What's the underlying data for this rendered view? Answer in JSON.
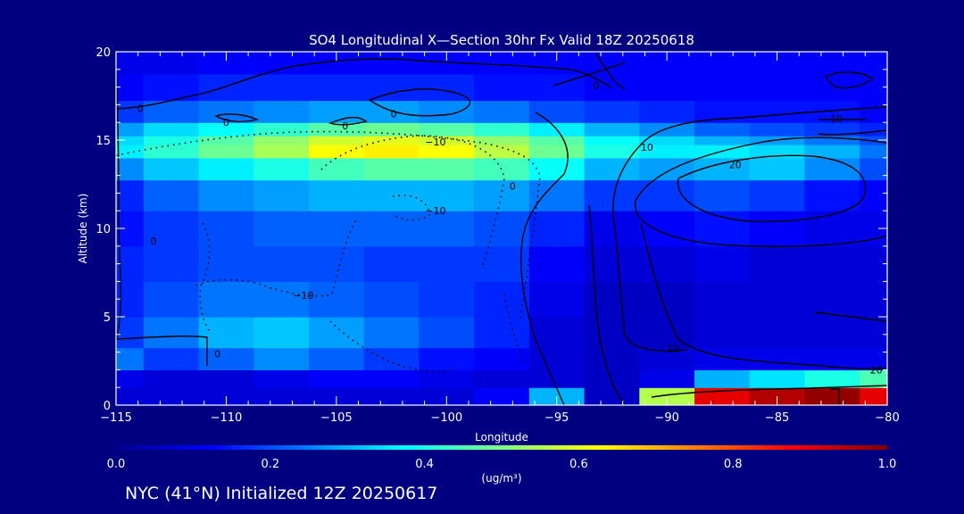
{
  "chart_data": {
    "type": "heatmap",
    "title": "SO4 Longitudinal X—Section 30hr  Fx Valid 18Z 20250618",
    "xlabel": "Longitude",
    "ylabel": "Altitude (km)",
    "xlim": [
      -115,
      -80
    ],
    "ylim": [
      0,
      20
    ],
    "x_ticks": [
      -115,
      -110,
      -105,
      -100,
      -95,
      -90,
      -85,
      -80
    ],
    "x_tick_labels": [
      "−115",
      "−110",
      "−105",
      "−100",
      "−95",
      "−90",
      "−85",
      "−80"
    ],
    "y_ticks": [
      0,
      5,
      10,
      15,
      20
    ],
    "y_tick_labels": [
      "0",
      "5",
      "10",
      "15",
      "20"
    ],
    "colorbar": {
      "min": 0.0,
      "max": 1.0,
      "ticks": [
        0.0,
        0.2,
        0.4,
        0.6,
        0.8,
        1.0
      ],
      "tick_labels": [
        "0.0",
        "0.2",
        "0.4",
        "0.6",
        "0.8",
        "1.0"
      ],
      "units": "(ug/m³)",
      "colormap": "jet"
    },
    "concentration_field": {
      "x": [
        -115,
        -112.5,
        -110,
        -107.5,
        -105,
        -102.5,
        -100,
        -97.5,
        -95,
        -92.5,
        -90,
        -87.5,
        -85,
        -82.5,
        -80
      ],
      "y": [
        0.5,
        1.5,
        2.5,
        4,
        6,
        8,
        10,
        12,
        13.5,
        14.5,
        15,
        15.5,
        16.5,
        18,
        19.5
      ],
      "z": [
        [
          0.08,
          0.08,
          0.08,
          0.08,
          0.08,
          0.08,
          0.08,
          0.12,
          0.3,
          0.06,
          0.55,
          0.9,
          0.95,
          0.98,
          0.9
        ],
        [
          0.1,
          0.08,
          0.08,
          0.1,
          0.12,
          0.12,
          0.1,
          0.08,
          0.08,
          0.06,
          0.1,
          0.3,
          0.35,
          0.4,
          0.45
        ],
        [
          0.24,
          0.18,
          0.22,
          0.26,
          0.22,
          0.18,
          0.14,
          0.12,
          0.08,
          0.06,
          0.08,
          0.1,
          0.1,
          0.1,
          0.1
        ],
        [
          0.18,
          0.24,
          0.3,
          0.32,
          0.28,
          0.24,
          0.2,
          0.16,
          0.08,
          0.06,
          0.06,
          0.08,
          0.08,
          0.08,
          0.08
        ],
        [
          0.16,
          0.2,
          0.24,
          0.24,
          0.22,
          0.2,
          0.18,
          0.16,
          0.1,
          0.06,
          0.06,
          0.08,
          0.08,
          0.08,
          0.08
        ],
        [
          0.16,
          0.18,
          0.2,
          0.2,
          0.2,
          0.18,
          0.18,
          0.18,
          0.12,
          0.08,
          0.08,
          0.1,
          0.08,
          0.08,
          0.08
        ],
        [
          0.14,
          0.18,
          0.2,
          0.22,
          0.22,
          0.22,
          0.22,
          0.2,
          0.16,
          0.1,
          0.12,
          0.14,
          0.12,
          0.1,
          0.1
        ],
        [
          0.16,
          0.22,
          0.26,
          0.28,
          0.3,
          0.3,
          0.3,
          0.28,
          0.24,
          0.18,
          0.18,
          0.2,
          0.18,
          0.14,
          0.12
        ],
        [
          0.26,
          0.32,
          0.36,
          0.4,
          0.44,
          0.46,
          0.46,
          0.44,
          0.38,
          0.3,
          0.28,
          0.3,
          0.32,
          0.26,
          0.2
        ],
        [
          0.36,
          0.42,
          0.48,
          0.54,
          0.62,
          0.64,
          0.62,
          0.56,
          0.48,
          0.4,
          0.36,
          0.36,
          0.34,
          0.3,
          0.24
        ],
        [
          0.34,
          0.4,
          0.46,
          0.52,
          0.58,
          0.6,
          0.58,
          0.52,
          0.46,
          0.38,
          0.34,
          0.3,
          0.28,
          0.24,
          0.2
        ],
        [
          0.28,
          0.34,
          0.38,
          0.42,
          0.46,
          0.48,
          0.46,
          0.42,
          0.36,
          0.3,
          0.26,
          0.22,
          0.2,
          0.18,
          0.16
        ],
        [
          0.18,
          0.22,
          0.24,
          0.26,
          0.28,
          0.28,
          0.26,
          0.24,
          0.2,
          0.18,
          0.16,
          0.14,
          0.14,
          0.14,
          0.12
        ],
        [
          0.12,
          0.14,
          0.16,
          0.16,
          0.16,
          0.16,
          0.16,
          0.14,
          0.14,
          0.12,
          0.12,
          0.12,
          0.12,
          0.12,
          0.12
        ],
        [
          0.1,
          0.1,
          0.12,
          0.12,
          0.12,
          0.12,
          0.12,
          0.12,
          0.12,
          0.12,
          0.12,
          0.12,
          0.12,
          0.12,
          0.12
        ]
      ]
    },
    "contour_labels": [
      {
        "text": "0",
        "x": -113.9,
        "y": 16.8
      },
      {
        "text": "0",
        "x": -110.0,
        "y": 16.0
      },
      {
        "text": "0",
        "x": -104.6,
        "y": 15.8
      },
      {
        "text": "0",
        "x": -102.4,
        "y": 16.5
      },
      {
        "text": "0",
        "x": -97.0,
        "y": 12.4
      },
      {
        "text": "0",
        "x": -113.3,
        "y": 9.3
      },
      {
        "text": "0",
        "x": -110.4,
        "y": 2.9
      },
      {
        "text": "0",
        "x": -93.2,
        "y": 18.1
      },
      {
        "text": "−10",
        "x": -100.5,
        "y": 14.9
      },
      {
        "text": "−10",
        "x": -100.5,
        "y": 11.0
      },
      {
        "text": "−10",
        "x": -106.5,
        "y": 6.2
      },
      {
        "text": "10",
        "x": -90.9,
        "y": 14.6
      },
      {
        "text": "10",
        "x": -89.7,
        "y": 3.2
      },
      {
        "text": "10",
        "x": -82.3,
        "y": 16.2
      },
      {
        "text": "20",
        "x": -86.9,
        "y": 13.6
      },
      {
        "text": "20",
        "x": -80.5,
        "y": 2.0
      }
    ]
  },
  "footer_text": "NYC (41°N) Initialized 12Z 20250617",
  "colors": {
    "background": "#000080",
    "contour_line": "#000000",
    "text": "#ffffff"
  }
}
